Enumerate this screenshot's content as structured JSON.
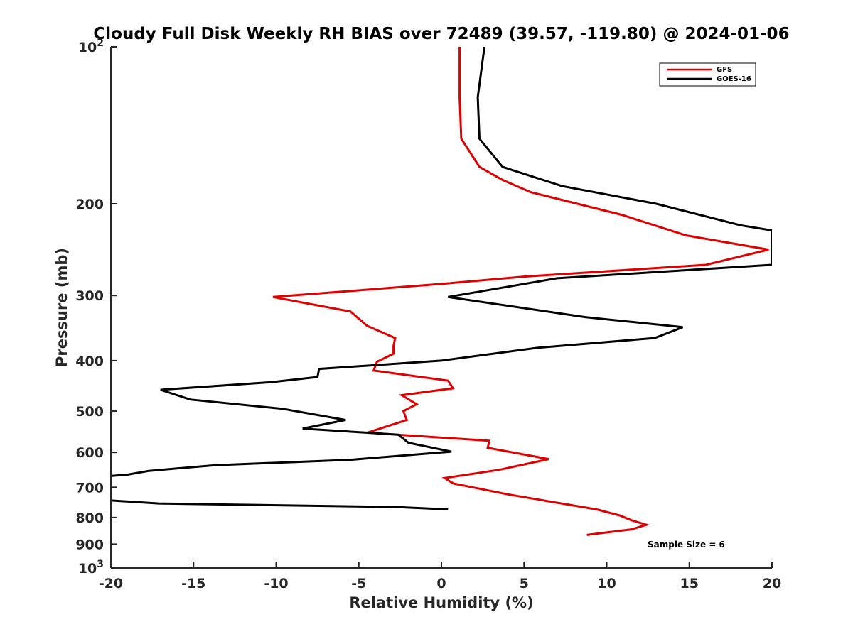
{
  "chart_data": {
    "type": "line",
    "title": "Cloudy Full Disk Weekly RH BIAS over 72489 (39.57, -119.80) @ 2024-01-06",
    "xlabel": "Relative Humidity (%)",
    "ylabel": "Pressure (mb)",
    "xlim": [
      -20,
      20
    ],
    "ylim": [
      100,
      1000
    ],
    "y_scale": "log",
    "y_reversed": true,
    "grid": false,
    "legend_position": "top-right",
    "x_ticks": [
      "-20",
      "-15",
      "-10",
      "-5",
      "0",
      "5",
      "10",
      "15",
      "20"
    ],
    "y_ticks": [
      {
        "value": 100,
        "label": "10",
        "exp": "2"
      },
      {
        "value": 200,
        "label": "200"
      },
      {
        "value": 300,
        "label": "300"
      },
      {
        "value": 400,
        "label": "400"
      },
      {
        "value": 500,
        "label": "500"
      },
      {
        "value": 600,
        "label": "600"
      },
      {
        "value": 700,
        "label": "700"
      },
      {
        "value": 800,
        "label": "800"
      },
      {
        "value": 900,
        "label": "900"
      },
      {
        "value": 1000,
        "label": "10",
        "exp": "3"
      }
    ],
    "annotation": "Sample Size = 6",
    "series": [
      {
        "name": "GFS",
        "color": "#e00000",
        "points": [
          [
            1.1,
            100
          ],
          [
            1.1,
            125
          ],
          [
            1.2,
            150
          ],
          [
            2.3,
            170
          ],
          [
            3.7,
            180
          ],
          [
            5.4,
            190
          ],
          [
            10.9,
            210
          ],
          [
            14.8,
            230
          ],
          [
            19.8,
            245
          ],
          [
            16.0,
            262
          ],
          [
            5.0,
            276
          ],
          [
            0.0,
            285
          ],
          [
            -10.2,
            302
          ],
          [
            -5.5,
            322
          ],
          [
            -4.5,
            343
          ],
          [
            -2.8,
            362
          ],
          [
            -2.9,
            375
          ],
          [
            -2.9,
            388
          ],
          [
            -3.9,
            402
          ],
          [
            -4.1,
            418
          ],
          [
            0.4,
            437
          ],
          [
            0.7,
            452
          ],
          [
            -2.4,
            466
          ],
          [
            -1.5,
            485
          ],
          [
            -2.3,
            500
          ],
          [
            -2.1,
            520
          ],
          [
            -4.5,
            550
          ],
          [
            2.9,
            570
          ],
          [
            2.8,
            588
          ],
          [
            6.5,
            618
          ],
          [
            3.5,
            648
          ],
          [
            0.2,
            672
          ],
          [
            0.7,
            688
          ],
          [
            4.0,
            722
          ],
          [
            9.4,
            772
          ],
          [
            10.8,
            793
          ],
          [
            11.5,
            810
          ],
          [
            12.4,
            826
          ],
          [
            11.5,
            843
          ],
          [
            8.8,
            864
          ]
        ]
      },
      {
        "name": "GOES-16",
        "color": "#000000",
        "points": [
          [
            2.6,
            100
          ],
          [
            2.2,
            125
          ],
          [
            2.3,
            150
          ],
          [
            3.7,
            170
          ],
          [
            7.3,
            185
          ],
          [
            13.0,
            200
          ],
          [
            18.1,
            220
          ],
          [
            20.0,
            225
          ],
          [
            20.0,
            262
          ],
          [
            7.0,
            278
          ],
          [
            0.4,
            302
          ],
          [
            8.7,
            330
          ],
          [
            14.6,
            345
          ],
          [
            12.9,
            362
          ],
          [
            5.8,
            378
          ],
          [
            0.0,
            400
          ],
          [
            -7.4,
            415
          ],
          [
            -7.5,
            430
          ],
          [
            -10.3,
            440
          ],
          [
            -17.0,
            455
          ],
          [
            -15.2,
            475
          ],
          [
            -9.6,
            495
          ],
          [
            -5.8,
            520
          ],
          [
            -8.4,
            540
          ],
          [
            -2.6,
            555
          ],
          [
            -2.0,
            575
          ],
          [
            0.6,
            598
          ],
          [
            -5.5,
            620
          ],
          [
            -13.7,
            635
          ],
          [
            -17.7,
            651
          ],
          [
            -19.0,
            662
          ],
          [
            -20.0,
            666
          ],
          [
            -20.0,
            742
          ],
          [
            -17.1,
            752
          ],
          [
            -2.6,
            764
          ],
          [
            0.4,
            772
          ]
        ]
      }
    ]
  }
}
